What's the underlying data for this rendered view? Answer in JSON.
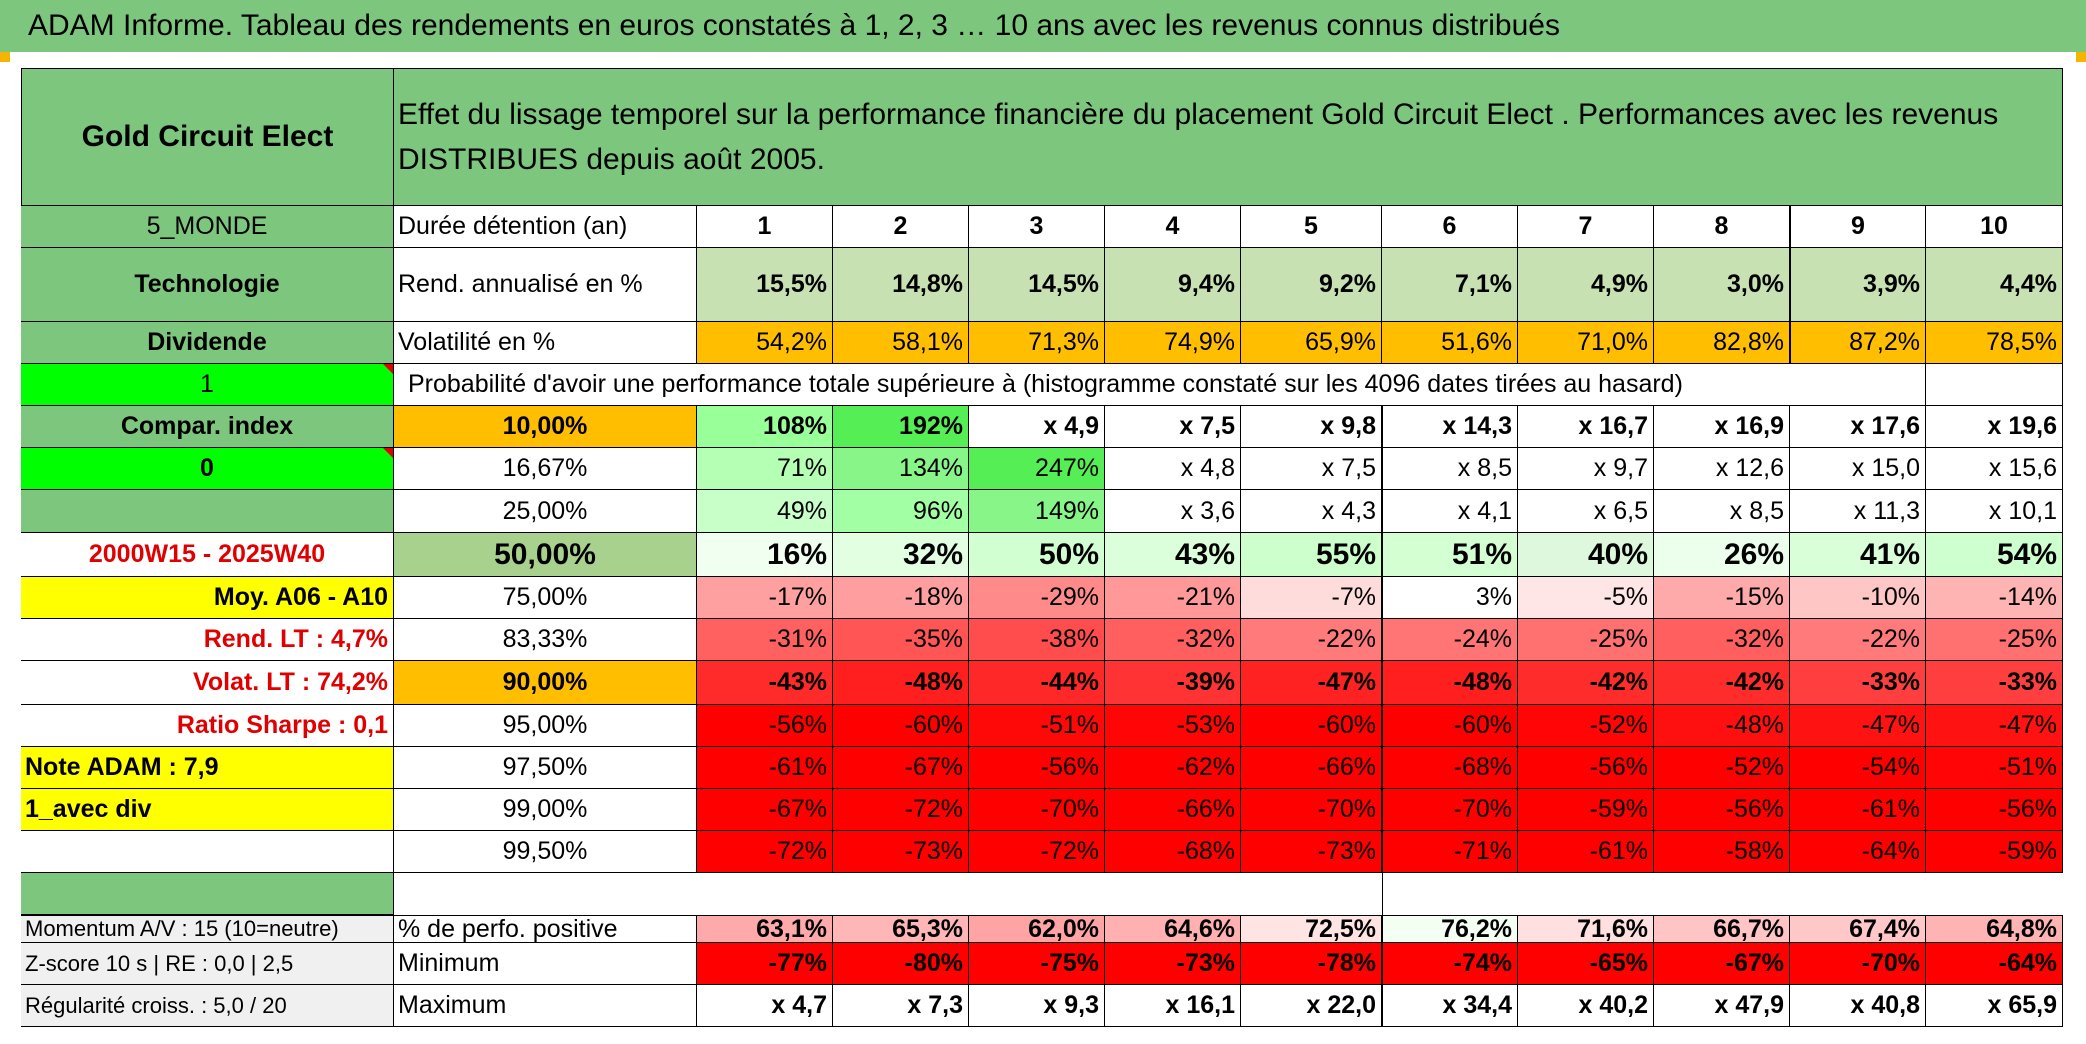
{
  "title": "ADAM Informe. Tableau des rendements en euros constatés à 1, 2, 3 … 10 ans avec les revenus connus distribués",
  "fund_name": "Gold Circuit Elect",
  "description": "Effet du lissage temporel sur la performance financière du placement Gold Circuit Elect . Performances avec les revenus DISTRIBUES depuis août 2005.",
  "side": {
    "region": "5_MONDE",
    "sector": "Technologie",
    "income": "Dividende",
    "flag1": "1",
    "compar": "Compar. index",
    "flag0": "0",
    "period": "2000W15 - 2025W40",
    "moy": "Moy. A06 - A10",
    "rend_lt": "Rend. LT :   4,7%",
    "volat_lt": "Volat. LT :   74,2%",
    "sharpe": "Ratio Sharpe :    0,1",
    "note": "Note ADAM : 7,9",
    "avec_div": "1_avec div",
    "momentum": "Momentum A/V : 15 (10=neutre)",
    "zscore": "Z-score 10 s | RE : 0,0 | 2,5",
    "regularite": "Régularité croiss. : 5,0 / 20"
  },
  "labels": {
    "duree": "Durée détention (an)",
    "rend": "Rend. annualisé en %",
    "vol": "Volatilité en %",
    "prob": "Probabilité d'avoir une performance totale supérieure à (histogramme constaté sur les 4096 dates tirées au hasard)",
    "pos": "% de perfo. positive",
    "min": "Minimum",
    "max": "Maximum"
  },
  "years": [
    "1",
    "2",
    "3",
    "4",
    "5",
    "6",
    "7",
    "8",
    "9",
    "10"
  ],
  "rend": [
    "15,5%",
    "14,8%",
    "14,5%",
    "9,4%",
    "9,2%",
    "7,1%",
    "4,9%",
    "3,0%",
    "3,9%",
    "4,4%"
  ],
  "vol": [
    "54,2%",
    "58,1%",
    "71,3%",
    "74,9%",
    "65,9%",
    "51,6%",
    "71,0%",
    "82,8%",
    "87,2%",
    "78,5%"
  ],
  "prob_rows": [
    {
      "pct": "10,00%",
      "vals": [
        "108%",
        "192%",
        "x 4,9",
        "x 7,5",
        "x 9,8",
        "x 14,3",
        "x 16,7",
        "x 16,9",
        "x 17,6",
        "x 19,6"
      ]
    },
    {
      "pct": "16,67%",
      "vals": [
        "71%",
        "134%",
        "247%",
        "x 4,8",
        "x 7,5",
        "x 8,5",
        "x 9,7",
        "x 12,6",
        "x 15,0",
        "x 15,6"
      ]
    },
    {
      "pct": "25,00%",
      "vals": [
        "49%",
        "96%",
        "149%",
        "x 3,6",
        "x 4,3",
        "x 4,1",
        "x 6,5",
        "x 8,5",
        "x 11,3",
        "x 10,1"
      ]
    },
    {
      "pct": "50,00%",
      "vals": [
        "16%",
        "32%",
        "50%",
        "43%",
        "55%",
        "51%",
        "40%",
        "26%",
        "41%",
        "54%"
      ]
    },
    {
      "pct": "75,00%",
      "vals": [
        "-17%",
        "-18%",
        "-29%",
        "-21%",
        "-7%",
        "3%",
        "-5%",
        "-15%",
        "-10%",
        "-14%"
      ]
    },
    {
      "pct": "83,33%",
      "vals": [
        "-31%",
        "-35%",
        "-38%",
        "-32%",
        "-22%",
        "-24%",
        "-25%",
        "-32%",
        "-22%",
        "-25%"
      ]
    },
    {
      "pct": "90,00%",
      "vals": [
        "-43%",
        "-48%",
        "-44%",
        "-39%",
        "-47%",
        "-48%",
        "-42%",
        "-42%",
        "-33%",
        "-33%"
      ]
    },
    {
      "pct": "95,00%",
      "vals": [
        "-56%",
        "-60%",
        "-51%",
        "-53%",
        "-60%",
        "-60%",
        "-52%",
        "-48%",
        "-47%",
        "-47%"
      ]
    },
    {
      "pct": "97,50%",
      "vals": [
        "-61%",
        "-67%",
        "-56%",
        "-62%",
        "-66%",
        "-68%",
        "-56%",
        "-52%",
        "-54%",
        "-51%"
      ]
    },
    {
      "pct": "99,00%",
      "vals": [
        "-67%",
        "-72%",
        "-70%",
        "-66%",
        "-70%",
        "-70%",
        "-59%",
        "-56%",
        "-61%",
        "-56%"
      ]
    },
    {
      "pct": "99,50%",
      "vals": [
        "-72%",
        "-73%",
        "-72%",
        "-68%",
        "-73%",
        "-71%",
        "-61%",
        "-58%",
        "-64%",
        "-59%"
      ]
    }
  ],
  "pos": [
    "63,1%",
    "65,3%",
    "62,0%",
    "64,6%",
    "72,5%",
    "76,2%",
    "71,6%",
    "66,7%",
    "67,4%",
    "64,8%"
  ],
  "min": [
    "-77%",
    "-80%",
    "-75%",
    "-73%",
    "-78%",
    "-74%",
    "-65%",
    "-67%",
    "-70%",
    "-64%"
  ],
  "max": [
    "x 4,7",
    "x 7,3",
    "x 9,3",
    "x 16,1",
    "x 22,0",
    "x 34,4",
    "x 40,2",
    "x 47,9",
    "x 40,8",
    "x 65,9"
  ],
  "colors": {
    "header_green": "#7dc67d",
    "light_green": "#c7e1b3",
    "orange": "#ffbf00",
    "yellow": "#ffff00",
    "bright_green": "#00ff00",
    "red_text": "#e00000"
  },
  "cell_colors": {
    "prob": [
      [
        "#99ff99",
        "#55ee55",
        "#ffffff",
        "#ffffff",
        "#ffffff",
        "#ffffff",
        "#ffffff",
        "#ffffff",
        "#ffffff",
        "#ffffff"
      ],
      [
        "#b5ffb5",
        "#88f588",
        "#55ee55",
        "#ffffff",
        "#ffffff",
        "#ffffff",
        "#ffffff",
        "#ffffff",
        "#ffffff",
        "#ffffff"
      ],
      [
        "#c8ffc8",
        "#a3ffa3",
        "#88f588",
        "#ffffff",
        "#ffffff",
        "#ffffff",
        "#ffffff",
        "#ffffff",
        "#ffffff",
        "#ffffff"
      ],
      [
        "#f0fff0",
        "#e2ffe2",
        "#d2ffd2",
        "#daffda",
        "#ccffcc",
        "#d3ffd3",
        "#def8de",
        "#ecffec",
        "#d9ffd9",
        "#ceffce"
      ],
      [
        "#ffa0a0",
        "#ff9e9e",
        "#ff8a8a",
        "#ff9999",
        "#ffdcdc",
        "#ffffff",
        "#ffe6e6",
        "#ffaaaa",
        "#ffc6c6",
        "#ffb4b4"
      ],
      [
        "#ff6060",
        "#ff5555",
        "#ff4d4d",
        "#ff5f5f",
        "#ff7a7a",
        "#ff7474",
        "#ff7070",
        "#ff5f5f",
        "#ff7a7a",
        "#ff7070"
      ],
      [
        "#ff2a2a",
        "#ff1f1f",
        "#ff2828",
        "#ff3333",
        "#ff2222",
        "#ff1f1f",
        "#ff2c2c",
        "#ff2c2c",
        "#ff3f3f",
        "#ff3f3f"
      ],
      [
        "#ff0000",
        "#ff0000",
        "#ff0808",
        "#ff0505",
        "#ff0000",
        "#ff0000",
        "#ff0505",
        "#ff1010",
        "#ff1212",
        "#ff1212"
      ],
      [
        "#ff0000",
        "#ff0000",
        "#ff0000",
        "#ff0000",
        "#ff0000",
        "#ff0000",
        "#ff0000",
        "#ff0000",
        "#ff0000",
        "#ff0505"
      ],
      [
        "#ff0000",
        "#ff0000",
        "#ff0000",
        "#ff0000",
        "#ff0000",
        "#ff0000",
        "#ff0000",
        "#ff0000",
        "#ff0000",
        "#ff0000"
      ],
      [
        "#ff0000",
        "#ff0000",
        "#ff0000",
        "#ff0000",
        "#ff0000",
        "#ff0000",
        "#ff0000",
        "#ff0000",
        "#ff0000",
        "#ff0000"
      ]
    ],
    "pos": [
      "#ffaaaa",
      "#ffb6b6",
      "#ffa4a4",
      "#ffb0b0",
      "#ffe4e4",
      "#f4fff4",
      "#ffe0e0",
      "#ffc4c4",
      "#ffc8c8",
      "#ffb4b4"
    ],
    "min": [
      "#ff0000",
      "#ff0000",
      "#ff0000",
      "#ff0000",
      "#ff0000",
      "#ff0000",
      "#ff0000",
      "#ff0000",
      "#ff0000",
      "#ff0000"
    ]
  }
}
